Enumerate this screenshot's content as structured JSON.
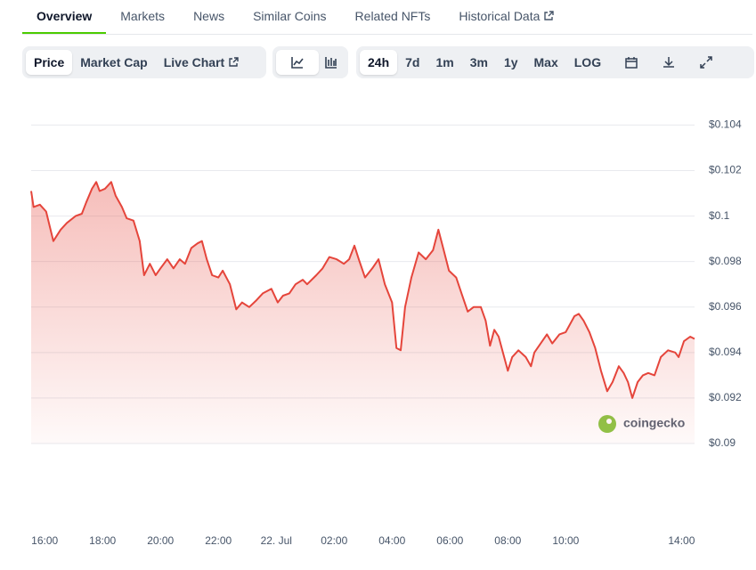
{
  "tabs": [
    "Overview",
    "Markets",
    "News",
    "Similar Coins",
    "Related NFTs",
    "Historical Data"
  ],
  "chart_tabs": [
    "Price",
    "Market Cap",
    "Live Chart"
  ],
  "ranges": [
    "24h",
    "7d",
    "1m",
    "3m",
    "1y",
    "Max",
    "LOG"
  ],
  "watermark": "coingecko",
  "chart_data": {
    "type": "line",
    "x": [
      "15:32",
      "15:37",
      "15:50",
      "16:03",
      "16:18",
      "16:33",
      "16:46",
      "17:04",
      "17:17",
      "17:26",
      "17:38",
      "17:47",
      "17:54",
      "18:05",
      "18:18",
      "18:27",
      "18:40",
      "18:50",
      "19:04",
      "19:17",
      "19:26",
      "19:38",
      "19:50",
      "20:00",
      "20:14",
      "20:27",
      "20:40",
      "20:51",
      "21:04",
      "21:17",
      "21:26",
      "21:36",
      "21:47",
      "22:00",
      "22:09",
      "22:24",
      "22:37",
      "22:49",
      "23:04",
      "23:19",
      "23:32",
      "23:50",
      "00:03",
      "00:14",
      "00:27",
      "00:40",
      "00:55",
      "01:04",
      "01:23",
      "01:36",
      "01:50",
      "02:05",
      "02:20",
      "02:31",
      "02:42",
      "02:51",
      "03:04",
      "03:19",
      "03:32",
      "03:45",
      "04:00",
      "04:09",
      "04:18",
      "04:27",
      "04:40",
      "04:55",
      "05:10",
      "05:25",
      "05:36",
      "05:47",
      "05:58",
      "06:13",
      "06:24",
      "06:37",
      "06:49",
      "07:04",
      "07:14",
      "07:23",
      "07:32",
      "07:41",
      "08:00",
      "08:09",
      "08:22",
      "08:37",
      "08:48",
      "08:55",
      "09:08",
      "09:21",
      "09:32",
      "09:47",
      "10:00",
      "10:18",
      "10:27",
      "10:37",
      "10:49",
      "11:01",
      "11:13",
      "11:26",
      "11:37",
      "11:50",
      "12:00",
      "12:09",
      "12:18",
      "12:29",
      "12:40",
      "12:51",
      "13:04",
      "13:17",
      "13:32",
      "13:47",
      "13:54",
      "14:05",
      "14:18",
      "14:27"
    ],
    "series": [
      {
        "color": "#e5453b",
        "values": [
          0.1011,
          0.1004,
          0.1005,
          0.1002,
          0.0989,
          0.0994,
          0.0997,
          0.1,
          0.1001,
          0.1006,
          0.1012,
          0.1015,
          0.1011,
          0.1012,
          0.1015,
          0.1009,
          0.1004,
          0.0999,
          0.0998,
          0.0989,
          0.0974,
          0.0979,
          0.0974,
          0.0977,
          0.0981,
          0.0977,
          0.0981,
          0.0979,
          0.0986,
          0.0988,
          0.0989,
          0.0981,
          0.0974,
          0.0973,
          0.0976,
          0.097,
          0.0959,
          0.0962,
          0.096,
          0.0963,
          0.0966,
          0.0968,
          0.0962,
          0.0965,
          0.0966,
          0.097,
          0.0972,
          0.097,
          0.0974,
          0.0977,
          0.0982,
          0.0981,
          0.0979,
          0.0981,
          0.0987,
          0.0981,
          0.0973,
          0.0977,
          0.0981,
          0.097,
          0.0962,
          0.0942,
          0.0941,
          0.096,
          0.0973,
          0.0984,
          0.0981,
          0.0985,
          0.0994,
          0.0985,
          0.0976,
          0.0973,
          0.0966,
          0.0958,
          0.096,
          0.096,
          0.0954,
          0.0943,
          0.095,
          0.0947,
          0.0932,
          0.0938,
          0.0941,
          0.0938,
          0.0934,
          0.094,
          0.0944,
          0.0948,
          0.0944,
          0.0948,
          0.0949,
          0.0956,
          0.0957,
          0.0954,
          0.0949,
          0.0942,
          0.0932,
          0.0923,
          0.0927,
          0.0934,
          0.0931,
          0.0927,
          0.092,
          0.0927,
          0.093,
          0.0931,
          0.093,
          0.0938,
          0.0941,
          0.094,
          0.0938,
          0.0945,
          0.0947,
          0.0946
        ]
      }
    ],
    "xlim": [
      "15:32",
      "14:27"
    ],
    "xticks": [
      "16:00",
      "18:00",
      "20:00",
      "22:00",
      {
        "value": "00:00",
        "label": "22. Jul"
      },
      "02:00",
      "04:00",
      "06:00",
      "08:00",
      "10:00",
      "14:00"
    ],
    "ylim": [
      0.09,
      0.1048
    ],
    "yticks": [
      {
        "value": 0.09,
        "label": "$0.09"
      },
      {
        "value": 0.092,
        "label": "$0.092"
      },
      {
        "value": 0.094,
        "label": "$0.094"
      },
      {
        "value": 0.096,
        "label": "$0.096"
      },
      {
        "value": 0.098,
        "label": "$0.098"
      },
      {
        "value": 0.1,
        "label": "$0.1"
      },
      {
        "value": 0.102,
        "label": "$0.102"
      },
      {
        "value": 0.104,
        "label": "$0.104"
      }
    ],
    "grid": true
  }
}
